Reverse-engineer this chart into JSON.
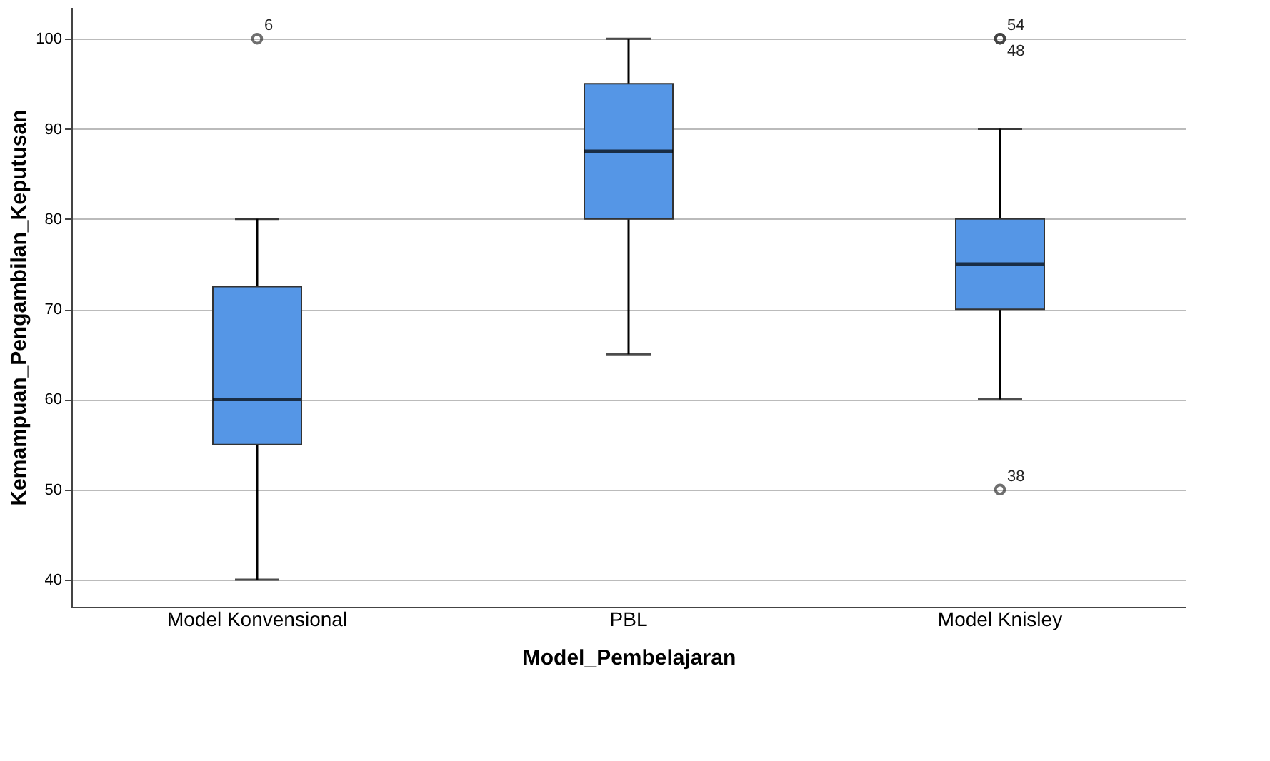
{
  "chart_data": {
    "type": "box",
    "xlabel": "Model_Pembelajaran",
    "ylabel": "Kemampuan_Pengambilan_Keputusan",
    "categories": [
      "Model Konvensional",
      "PBL",
      "Model Knisley"
    ],
    "boxes": [
      {
        "low": 40,
        "q1": 55,
        "median": 60,
        "q3": 72.5,
        "high": 80,
        "outliers": [
          100
        ]
      },
      {
        "low": 65,
        "q1": 80,
        "median": 87.5,
        "q3": 95,
        "high": 100
      },
      {
        "low": 60,
        "q1": 70,
        "median": 75,
        "q3": 80,
        "high": 90,
        "outliers": [
          100,
          100,
          50
        ]
      }
    ],
    "color": "#5596e6",
    "ylim": [
      37,
      103.5
    ],
    "yticks": [
      40,
      50,
      60,
      70,
      80,
      90,
      100
    ],
    "grid": "y",
    "annotations": [
      "6",
      "54",
      "48",
      "38"
    ]
  }
}
